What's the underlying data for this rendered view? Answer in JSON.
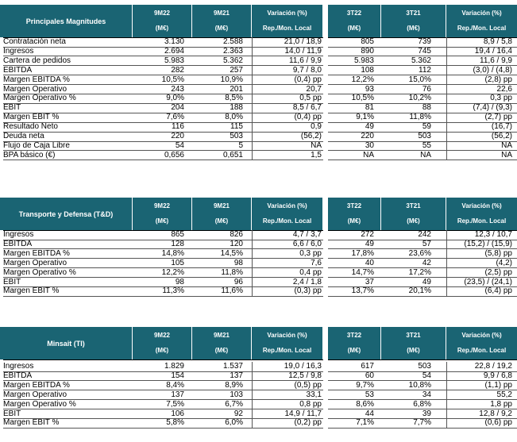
{
  "tables": [
    {
      "id": "principales",
      "title": "Principales Magnitudes",
      "headers": {
        "c1": [
          "9M22",
          "(M€)"
        ],
        "c2": [
          "9M21",
          "(M€)"
        ],
        "c3": [
          "Variación (%)",
          "Rep./Mon. Local"
        ],
        "c4": [
          "3T22",
          "(M€)"
        ],
        "c5": [
          "3T21",
          "(M€)"
        ],
        "c6": [
          "Variación (%)",
          "Rep./Mon. Local"
        ]
      },
      "rows": [
        [
          "Contratación neta",
          "3.130",
          "2.588",
          "21,0 / 18,9",
          "805",
          "739",
          "8,9 / 5,8"
        ],
        [
          "Ingresos",
          "2.694",
          "2.363",
          "14,0 / 11,9",
          "890",
          "745",
          "19,4 / 16,4"
        ],
        [
          "Cartera de pedidos",
          "5.983",
          "5.362",
          "11,6 / 9,9",
          "5.983",
          "5.362",
          "11,6 / 9,9"
        ],
        [
          "EBITDA",
          "282",
          "257",
          "9,7 / 8,0",
          "108",
          "112",
          "(3,0) / (4,8)"
        ],
        [
          "Margen EBITDA %",
          "10,5%",
          "10,9%",
          "(0,4) pp",
          "12,2%",
          "15,0%",
          "(2,8) pp"
        ],
        [
          "Margen Operativo",
          "243",
          "201",
          "20,7",
          "93",
          "76",
          "22,6"
        ],
        [
          "Margen Operativo %",
          "9,0%",
          "8,5%",
          "0,5 pp",
          "10,5%",
          "10,2%",
          "0,3 pp"
        ],
        [
          "EBIT",
          "204",
          "188",
          "8,5 / 6,7",
          "81",
          "88",
          "(7,4) / (9,3)"
        ],
        [
          "Margen EBIT %",
          "7,6%",
          "8,0%",
          "(0,4) pp",
          "9,1%",
          "11,8%",
          "(2,7) pp"
        ],
        [
          "Resultado Neto",
          "116",
          "115",
          "0,9",
          "49",
          "59",
          "(16,7)"
        ],
        [
          "Deuda neta",
          "220",
          "503",
          "(56,2)",
          "220",
          "503",
          "(56,2)"
        ],
        [
          "Flujo de Caja Libre",
          "54",
          "5",
          "NA",
          "30",
          "55",
          "NA"
        ],
        [
          "BPA básico (€)",
          "0,656",
          "0,651",
          "1,5",
          "NA",
          "NA",
          "NA"
        ]
      ]
    },
    {
      "id": "tyd",
      "title": "Transporte y Defensa (T&D)",
      "headers": {
        "c1": [
          "9M22",
          "(M€)"
        ],
        "c2": [
          "9M21",
          "(M€)"
        ],
        "c3": [
          "Variación (%)",
          "Rep./Mon. Local"
        ],
        "c4": [
          "3T22",
          "(M€)"
        ],
        "c5": [
          "3T21",
          "(M€)"
        ],
        "c6": [
          "Variación (%)",
          "Rep./Mon. Local"
        ]
      },
      "rows": [
        [
          "Ingresos",
          "865",
          "826",
          "4,7 / 3,7",
          "272",
          "242",
          "12,3 / 10,7"
        ],
        [
          "EBITDA",
          "128",
          "120",
          "6,6 / 6,0",
          "49",
          "57",
          "(15,2) / (15,9)"
        ],
        [
          "Margen EBITDA %",
          "14,8%",
          "14,5%",
          "0,3 pp",
          "17,8%",
          "23,6%",
          "(5,8) pp"
        ],
        [
          "Margen Operativo",
          "105",
          "98",
          "7,6",
          "40",
          "42",
          "(4,2)"
        ],
        [
          "Margen Operativo %",
          "12,2%",
          "11,8%",
          "0,4 pp",
          "14,7%",
          "17,2%",
          "(2,5) pp"
        ],
        [
          "EBIT",
          "98",
          "96",
          "2,4 / 1,8",
          "37",
          "49",
          "(23,5) / (24,1)"
        ],
        [
          "Margen EBIT %",
          "11,3%",
          "11,6%",
          "(0,3) pp",
          "13,7%",
          "20,1%",
          "(6,4) pp"
        ]
      ]
    },
    {
      "id": "minsait",
      "title": "Minsait (TI)",
      "headers": {
        "c1": [
          "9M22",
          "(M€)"
        ],
        "c2": [
          "9M21",
          "(M€)"
        ],
        "c3": [
          "Variación (%)",
          "Rep./Mon. Local"
        ],
        "c4": [
          "3T22",
          "(M€)"
        ],
        "c5": [
          "3T21",
          "(M€)"
        ],
        "c6": [
          "Variación (%)",
          "Rep./Mon. Local"
        ]
      },
      "rows": [
        [
          "Ingresos",
          "1.829",
          "1.537",
          "19,0 / 16,3",
          "617",
          "503",
          "22,8 / 19,2"
        ],
        [
          "EBITDA",
          "154",
          "137",
          "12,5 / 9,8",
          "60",
          "54",
          "9,9 / 6,8"
        ],
        [
          "Margen EBITDA %",
          "8,4%",
          "8,9%",
          "(0,5) pp",
          "9,7%",
          "10,8%",
          "(1,1) pp"
        ],
        [
          "Margen Operativo",
          "137",
          "103",
          "33,1",
          "53",
          "34",
          "55,2"
        ],
        [
          "Margen Operativo %",
          "7,5%",
          "6,7%",
          "0,8 pp",
          "8,6%",
          "6,8%",
          "1,8 pp"
        ],
        [
          "EBIT",
          "106",
          "92",
          "14,9 / 11,7",
          "44",
          "39",
          "12,8 / 9,2"
        ],
        [
          "Margen EBIT %",
          "5,8%",
          "6,0%",
          "(0,2) pp",
          "7,1%",
          "7,7%",
          "(0,6) pp"
        ]
      ]
    }
  ],
  "colors": {
    "header_bg": "#1a6473",
    "header_text": "#ffffff"
  }
}
